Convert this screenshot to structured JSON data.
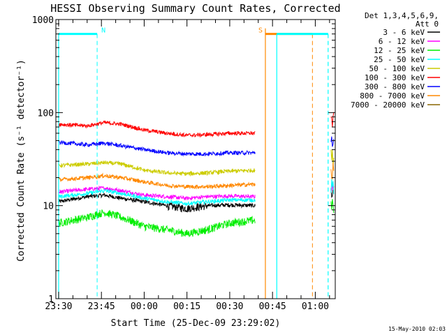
{
  "chart_data": {
    "type": "line",
    "title": "HESSI Observing Summary Count Rates, Corrected",
    "xlabel": "Start Time (25-Dec-09 23:29:02)",
    "ylabel": "Corrected Count Rate (s⁻¹ detector⁻¹)",
    "ylog": true,
    "ylim": [
      1,
      1000
    ],
    "xlim_minutes_since_2330": [
      -0.97,
      97
    ],
    "xticks": [
      {
        "label": "23:30",
        "minute": 0
      },
      {
        "label": "23:45",
        "minute": 15
      },
      {
        "label": "00:00",
        "minute": 30
      },
      {
        "label": "00:15",
        "minute": 45
      },
      {
        "label": "00:30",
        "minute": 60
      },
      {
        "label": "00:45",
        "minute": 75
      },
      {
        "label": "01:00",
        "minute": 90
      }
    ],
    "yticks": [
      {
        "label": "1",
        "value": 1
      },
      {
        "label": "10",
        "value": 10
      },
      {
        "label": "100",
        "value": 100
      },
      {
        "label": "1000",
        "value": 1000
      }
    ],
    "legend_header": [
      "Det 1,3,4,5,6,9,",
      "Att 0"
    ],
    "legend_position": "right",
    "series": [
      {
        "name": "3 - 6 keV",
        "color": "#000000",
        "points": [
          [
            0,
            11
          ],
          [
            10,
            12.5
          ],
          [
            16,
            13
          ],
          [
            22,
            12
          ],
          [
            30,
            11
          ],
          [
            38,
            10
          ],
          [
            45,
            9.3
          ],
          [
            52,
            10
          ],
          [
            60,
            10.2
          ],
          [
            69,
            10
          ]
        ]
      },
      {
        "name": "6 - 12 keV",
        "color": "#ff00ff",
        "points": [
          [
            0,
            14
          ],
          [
            10,
            15
          ],
          [
            16,
            15.5
          ],
          [
            22,
            14.5
          ],
          [
            30,
            13
          ],
          [
            38,
            12.5
          ],
          [
            45,
            12
          ],
          [
            52,
            12.5
          ],
          [
            60,
            12.7
          ],
          [
            69,
            12.5
          ]
        ]
      },
      {
        "name": "12 - 25 keV",
        "color": "#00ee00",
        "points": [
          [
            0,
            6.5
          ],
          [
            10,
            7.5
          ],
          [
            16,
            8.5
          ],
          [
            22,
            7.5
          ],
          [
            30,
            6
          ],
          [
            38,
            5.5
          ],
          [
            45,
            5
          ],
          [
            52,
            5.5
          ],
          [
            60,
            6.5
          ],
          [
            69,
            7
          ]
        ]
      },
      {
        "name": "25 - 50 keV",
        "color": "#00ffff",
        "points": [
          [
            0,
            12.5
          ],
          [
            10,
            13.5
          ],
          [
            16,
            14.5
          ],
          [
            22,
            13.5
          ],
          [
            30,
            12
          ],
          [
            38,
            11
          ],
          [
            45,
            10.5
          ],
          [
            52,
            11
          ],
          [
            60,
            11.5
          ],
          [
            69,
            11.5
          ]
        ]
      },
      {
        "name": "50 - 100 keV",
        "color": "#cccc00",
        "points": [
          [
            0,
            27
          ],
          [
            10,
            28
          ],
          [
            16,
            29
          ],
          [
            22,
            28
          ],
          [
            30,
            24
          ],
          [
            38,
            22.5
          ],
          [
            45,
            22
          ],
          [
            52,
            22.5
          ],
          [
            60,
            23.5
          ],
          [
            69,
            24
          ]
        ]
      },
      {
        "name": "100 - 300 keV",
        "color": "#ff0000",
        "points": [
          [
            0,
            75
          ],
          [
            10,
            72
          ],
          [
            16,
            78
          ],
          [
            22,
            75
          ],
          [
            30,
            65
          ],
          [
            38,
            60
          ],
          [
            45,
            57
          ],
          [
            52,
            58
          ],
          [
            60,
            60
          ],
          [
            69,
            60
          ]
        ]
      },
      {
        "name": "300 - 800 keV",
        "color": "#0000ff",
        "points": [
          [
            0,
            48
          ],
          [
            10,
            45
          ],
          [
            16,
            47
          ],
          [
            22,
            44
          ],
          [
            30,
            40
          ],
          [
            38,
            37
          ],
          [
            45,
            36
          ],
          [
            52,
            36
          ],
          [
            60,
            37
          ],
          [
            69,
            37
          ]
        ]
      },
      {
        "name": "800 - 7000 keV",
        "color": "#ff8800",
        "points": [
          [
            0,
            19
          ],
          [
            10,
            20
          ],
          [
            16,
            21
          ],
          [
            22,
            20
          ],
          [
            30,
            18
          ],
          [
            38,
            16.5
          ],
          [
            45,
            16
          ],
          [
            52,
            16
          ],
          [
            60,
            16.5
          ],
          [
            69,
            17
          ]
        ]
      },
      {
        "name": "7000 - 20000 keV",
        "color": "#886600",
        "points": []
      }
    ],
    "markers": [
      {
        "label": "N",
        "color": "#00ffff",
        "bar_start": 0,
        "bar_end": 13.5,
        "line_minute": 13.5
      },
      {
        "label": "S",
        "color": "#ff8800",
        "bar_start": 72.5,
        "bar_end": 89,
        "line_minute": 89
      }
    ],
    "night_bar_2_start": 76.5,
    "night_bar_2_end": 94.5,
    "night_lines_minutes": [
      76.5,
      94.5
    ],
    "saa_lines_minutes": [
      72.5
    ],
    "level": 700
  },
  "footer": {
    "date": "15-May-2010 02:03"
  }
}
